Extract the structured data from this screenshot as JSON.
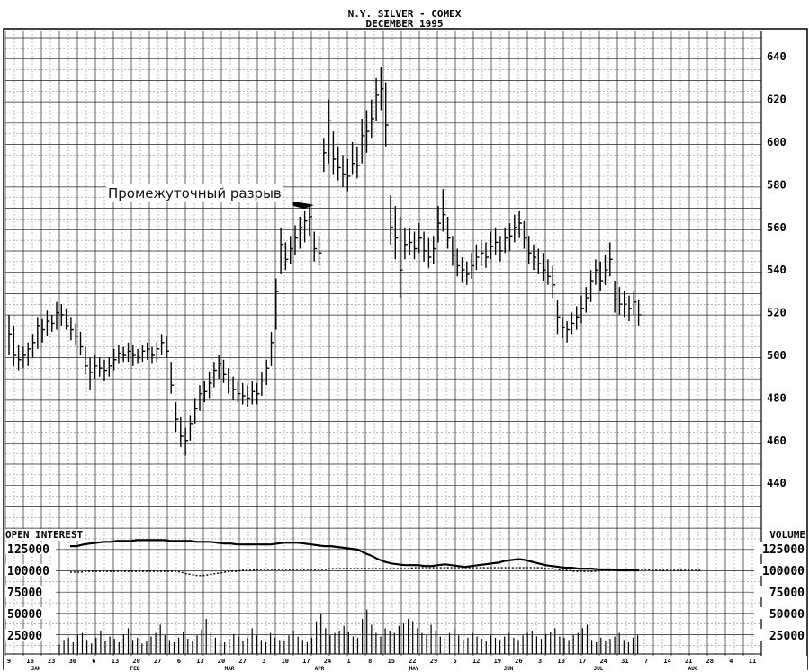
{
  "chart_data": {
    "type": "bar",
    "title": "N.Y. SILVER - COMEX",
    "subtitle": "DECEMBER 1995",
    "price_axis": {
      "ylim": [
        420,
        650
      ],
      "ticks": [
        440,
        460,
        480,
        500,
        520,
        540,
        560,
        580,
        600,
        620,
        640
      ],
      "side": "right"
    },
    "volume_axis": {
      "ticks_left": [
        25000,
        50000,
        75000,
        100000,
        125000
      ],
      "ticks_right": [
        25000,
        50000,
        75000,
        100000,
        125000
      ],
      "left_label": "OPEN INTEREST",
      "right_label": "VOLUME"
    },
    "x_axis": {
      "day_labels": [
        "9",
        "16",
        "23",
        "30",
        "6",
        "13",
        "20",
        "27",
        "6",
        "13",
        "20",
        "27",
        "3",
        "10",
        "17",
        "24",
        "1",
        "8",
        "15",
        "22",
        "29",
        "5",
        "12",
        "19",
        "26",
        "3",
        "10",
        "17",
        "24",
        "31",
        "7",
        "14",
        "21",
        "28",
        "4",
        "11"
      ],
      "month_labels": [
        "JAN",
        "FEB",
        "MAR",
        "APR",
        "MAY",
        "JUN",
        "JUL",
        "AUG"
      ]
    },
    "annotations": [
      {
        "text": "Промежуточный разрыв",
        "target_day": 64,
        "target_price": 571
      }
    ],
    "ohlc": [
      {
        "h": 519,
        "l": 500,
        "c": 510
      },
      {
        "h": 514,
        "l": 495,
        "c": 500
      },
      {
        "h": 505,
        "l": 493,
        "c": 498
      },
      {
        "h": 504,
        "l": 494,
        "c": 500
      },
      {
        "h": 506,
        "l": 495,
        "c": 503
      },
      {
        "h": 510,
        "l": 499,
        "c": 506
      },
      {
        "h": 518,
        "l": 503,
        "c": 514
      },
      {
        "h": 517,
        "l": 506,
        "c": 512
      },
      {
        "h": 521,
        "l": 509,
        "c": 516
      },
      {
        "h": 519,
        "l": 511,
        "c": 515
      },
      {
        "h": 525,
        "l": 512,
        "c": 520
      },
      {
        "h": 524,
        "l": 514,
        "c": 519
      },
      {
        "h": 522,
        "l": 512,
        "c": 514
      },
      {
        "h": 518,
        "l": 507,
        "c": 512
      },
      {
        "h": 515,
        "l": 505,
        "c": 509
      },
      {
        "h": 511,
        "l": 500,
        "c": 504
      },
      {
        "h": 504,
        "l": 491,
        "c": 495
      },
      {
        "h": 499,
        "l": 484,
        "c": 492
      },
      {
        "h": 500,
        "l": 489,
        "c": 495
      },
      {
        "h": 499,
        "l": 490,
        "c": 494
      },
      {
        "h": 498,
        "l": 488,
        "c": 493
      },
      {
        "h": 499,
        "l": 490,
        "c": 495
      },
      {
        "h": 503,
        "l": 493,
        "c": 498
      },
      {
        "h": 505,
        "l": 496,
        "c": 501
      },
      {
        "h": 504,
        "l": 497,
        "c": 500
      },
      {
        "h": 506,
        "l": 497,
        "c": 502
      },
      {
        "h": 505,
        "l": 495,
        "c": 500
      },
      {
        "h": 503,
        "l": 496,
        "c": 499
      },
      {
        "h": 505,
        "l": 497,
        "c": 502
      },
      {
        "h": 506,
        "l": 498,
        "c": 503
      },
      {
        "h": 504,
        "l": 496,
        "c": 500
      },
      {
        "h": 506,
        "l": 497,
        "c": 503
      },
      {
        "h": 510,
        "l": 500,
        "c": 506
      },
      {
        "h": 509,
        "l": 499,
        "c": 502
      },
      {
        "h": 497,
        "l": 482,
        "c": 486
      },
      {
        "h": 478,
        "l": 464,
        "c": 470
      },
      {
        "h": 471,
        "l": 457,
        "c": 462
      },
      {
        "h": 466,
        "l": 453,
        "c": 460
      },
      {
        "h": 472,
        "l": 460,
        "c": 468
      },
      {
        "h": 480,
        "l": 468,
        "c": 475
      },
      {
        "h": 486,
        "l": 474,
        "c": 482
      },
      {
        "h": 488,
        "l": 478,
        "c": 483
      },
      {
        "h": 492,
        "l": 480,
        "c": 487
      },
      {
        "h": 497,
        "l": 485,
        "c": 493
      },
      {
        "h": 500,
        "l": 489,
        "c": 496
      },
      {
        "h": 498,
        "l": 487,
        "c": 491
      },
      {
        "h": 494,
        "l": 482,
        "c": 488
      },
      {
        "h": 490,
        "l": 479,
        "c": 484
      },
      {
        "h": 488,
        "l": 478,
        "c": 482
      },
      {
        "h": 487,
        "l": 477,
        "c": 481
      },
      {
        "h": 486,
        "l": 476,
        "c": 480
      },
      {
        "h": 488,
        "l": 477,
        "c": 483
      },
      {
        "h": 487,
        "l": 477,
        "c": 482
      },
      {
        "h": 492,
        "l": 481,
        "c": 488
      },
      {
        "h": 498,
        "l": 486,
        "c": 494
      },
      {
        "h": 511,
        "l": 495,
        "c": 506
      },
      {
        "h": 536,
        "l": 512,
        "c": 530
      },
      {
        "h": 560,
        "l": 538,
        "c": 552
      },
      {
        "h": 553,
        "l": 540,
        "c": 545
      },
      {
        "h": 556,
        "l": 543,
        "c": 550
      },
      {
        "h": 561,
        "l": 547,
        "c": 555
      },
      {
        "h": 565,
        "l": 550,
        "c": 560
      },
      {
        "h": 568,
        "l": 553,
        "c": 563
      },
      {
        "h": 571,
        "l": 556,
        "c": 565
      },
      {
        "h": 558,
        "l": 544,
        "c": 550
      },
      {
        "h": 556,
        "l": 542,
        "c": 548
      },
      {
        "h": 602,
        "l": 586,
        "c": 595
      },
      {
        "h": 620,
        "l": 590,
        "c": 610
      },
      {
        "h": 605,
        "l": 585,
        "c": 592
      },
      {
        "h": 598,
        "l": 582,
        "c": 588
      },
      {
        "h": 594,
        "l": 579,
        "c": 585
      },
      {
        "h": 592,
        "l": 577,
        "c": 584
      },
      {
        "h": 600,
        "l": 585,
        "c": 590
      },
      {
        "h": 598,
        "l": 583,
        "c": 589
      },
      {
        "h": 611,
        "l": 590,
        "c": 603
      },
      {
        "h": 615,
        "l": 595,
        "c": 605
      },
      {
        "h": 620,
        "l": 602,
        "c": 611
      },
      {
        "h": 630,
        "l": 610,
        "c": 622
      },
      {
        "h": 635,
        "l": 615,
        "c": 625
      },
      {
        "h": 628,
        "l": 598,
        "c": 608
      },
      {
        "h": 575,
        "l": 552,
        "c": 560
      },
      {
        "h": 570,
        "l": 545,
        "c": 555
      },
      {
        "h": 565,
        "l": 527,
        "c": 540
      },
      {
        "h": 560,
        "l": 545,
        "c": 552
      },
      {
        "h": 560,
        "l": 547,
        "c": 553
      },
      {
        "h": 558,
        "l": 545,
        "c": 550
      },
      {
        "h": 562,
        "l": 548,
        "c": 555
      },
      {
        "h": 558,
        "l": 544,
        "c": 549
      },
      {
        "h": 555,
        "l": 541,
        "c": 546
      },
      {
        "h": 556,
        "l": 543,
        "c": 550
      },
      {
        "h": 570,
        "l": 553,
        "c": 562
      },
      {
        "h": 578,
        "l": 558,
        "c": 566
      },
      {
        "h": 565,
        "l": 550,
        "c": 555
      },
      {
        "h": 556,
        "l": 542,
        "c": 547
      },
      {
        "h": 550,
        "l": 537,
        "c": 542
      },
      {
        "h": 546,
        "l": 534,
        "c": 540
      },
      {
        "h": 544,
        "l": 533,
        "c": 538
      },
      {
        "h": 548,
        "l": 536,
        "c": 542
      },
      {
        "h": 552,
        "l": 540,
        "c": 546
      },
      {
        "h": 554,
        "l": 542,
        "c": 548
      },
      {
        "h": 553,
        "l": 541,
        "c": 546
      },
      {
        "h": 558,
        "l": 545,
        "c": 551
      },
      {
        "h": 560,
        "l": 547,
        "c": 553
      },
      {
        "h": 556,
        "l": 544,
        "c": 549
      },
      {
        "h": 560,
        "l": 548,
        "c": 555
      },
      {
        "h": 562,
        "l": 549,
        "c": 556
      },
      {
        "h": 566,
        "l": 553,
        "c": 560
      },
      {
        "h": 568,
        "l": 555,
        "c": 562
      },
      {
        "h": 563,
        "l": 550,
        "c": 555
      },
      {
        "h": 556,
        "l": 543,
        "c": 548
      },
      {
        "h": 552,
        "l": 540,
        "c": 546
      },
      {
        "h": 550,
        "l": 538,
        "c": 543
      },
      {
        "h": 548,
        "l": 535,
        "c": 540
      },
      {
        "h": 545,
        "l": 533,
        "c": 537
      },
      {
        "h": 542,
        "l": 527,
        "c": 533
      },
      {
        "h": 526,
        "l": 510,
        "c": 518
      },
      {
        "h": 518,
        "l": 508,
        "c": 513
      },
      {
        "h": 516,
        "l": 506,
        "c": 512
      },
      {
        "h": 520,
        "l": 510,
        "c": 515
      },
      {
        "h": 523,
        "l": 512,
        "c": 518
      },
      {
        "h": 528,
        "l": 515,
        "c": 522
      },
      {
        "h": 532,
        "l": 520,
        "c": 527
      },
      {
        "h": 540,
        "l": 525,
        "c": 535
      },
      {
        "h": 545,
        "l": 533,
        "c": 540
      },
      {
        "h": 544,
        "l": 530,
        "c": 535
      },
      {
        "h": 547,
        "l": 533,
        "c": 540
      },
      {
        "h": 553,
        "l": 537,
        "c": 545
      },
      {
        "h": 535,
        "l": 520,
        "c": 526
      },
      {
        "h": 532,
        "l": 519,
        "c": 524
      },
      {
        "h": 530,
        "l": 518,
        "c": 524
      },
      {
        "h": 528,
        "l": 516,
        "c": 522
      },
      {
        "h": 530,
        "l": 519,
        "c": 525
      },
      {
        "h": 526,
        "l": 514,
        "c": 519
      },
      {
        "h": 520,
        "l": 511,
        "c": 515
      }
    ],
    "open_interest": [
      128,
      128,
      130,
      131,
      132,
      133,
      133,
      134,
      134,
      134,
      135,
      135,
      135,
      135,
      135,
      134,
      134,
      134,
      134,
      133,
      133,
      133,
      132,
      131,
      131,
      130,
      130,
      130,
      130,
      130,
      130,
      131,
      132,
      132,
      132,
      131,
      130,
      129,
      128,
      128,
      127,
      126,
      125,
      124,
      120,
      117,
      113,
      110,
      108,
      107,
      106,
      106,
      106,
      105,
      105,
      106,
      107,
      106,
      105,
      104,
      105,
      106,
      107,
      108,
      109,
      111,
      112,
      113,
      112,
      110,
      108,
      106,
      105,
      104,
      103,
      103,
      102,
      102,
      102,
      101,
      101,
      101,
      100,
      100,
      100,
      100
    ],
    "volume_ma": [
      98,
      98,
      98,
      99,
      99,
      99,
      99,
      99,
      99,
      99,
      99,
      99,
      99,
      99,
      99,
      99,
      99,
      99,
      99,
      99,
      98,
      96,
      95,
      94,
      94,
      95,
      96,
      97,
      98,
      99,
      99,
      100,
      100,
      100,
      101,
      101,
      101,
      101,
      101,
      101,
      101,
      101,
      101,
      101,
      101,
      101,
      101,
      102,
      102,
      102,
      102,
      102,
      102,
      102,
      102,
      102,
      102,
      102,
      102,
      102,
      102,
      102,
      103,
      103,
      103,
      103,
      103,
      103,
      103,
      103,
      103,
      103,
      103,
      103,
      103,
      103,
      103,
      103,
      103,
      103,
      103,
      103,
      103,
      103,
      103,
      103,
      102,
      102,
      101,
      100,
      100,
      99,
      99,
      99,
      99,
      99,
      100,
      100,
      100,
      100,
      101,
      101,
      101,
      101,
      101,
      100,
      100,
      100,
      100,
      100,
      100,
      100,
      100,
      100,
      100
    ],
    "volume_bars": [
      8,
      12,
      14,
      10,
      16,
      18,
      12,
      9,
      14,
      20,
      11,
      15,
      13,
      10,
      17,
      22,
      12,
      14,
      9,
      11,
      15,
      18,
      25,
      16,
      12,
      10,
      14,
      19,
      13,
      11,
      16,
      21,
      30,
      18,
      14,
      12,
      10,
      13,
      17,
      15,
      11,
      14,
      22,
      16,
      12,
      10,
      18,
      14,
      12,
      11,
      16,
      20,
      15,
      12,
      10,
      14,
      28,
      35,
      22,
      16,
      18,
      20,
      24,
      19,
      15,
      14,
      30,
      38,
      25,
      18,
      15,
      22,
      20,
      18,
      24,
      26,
      30,
      28,
      22,
      18,
      16,
      25,
      20,
      15,
      14,
      18,
      22,
      16,
      12,
      14,
      18,
      15,
      13,
      11,
      16,
      14,
      12,
      15,
      18,
      14,
      12,
      16,
      18,
      20,
      15,
      13,
      17,
      19,
      22,
      15,
      14,
      12,
      16,
      18,
      22,
      25,
      12,
      10,
      14,
      11,
      13,
      15,
      18,
      12,
      10,
      14,
      16,
      12,
      11,
      10,
      9,
      12
    ]
  }
}
